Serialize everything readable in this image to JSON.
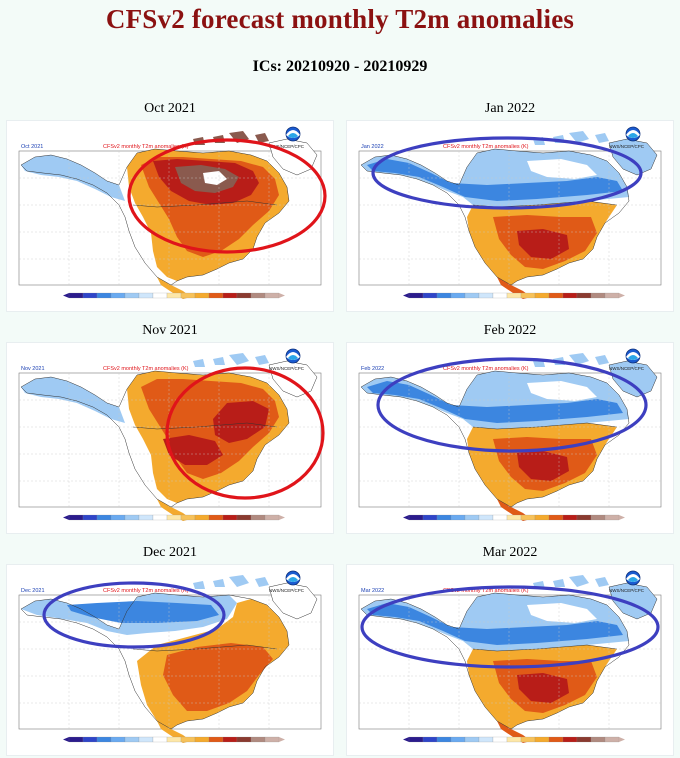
{
  "header": {
    "title": "CFSv2 forecast monthly T2m anomalies",
    "subtitle": "ICs: 20210920 - 20210929"
  },
  "map_header": {
    "title": "CFSv2 monthly T2m anomalies (K)",
    "credit": "NWS/NCEP/CPC",
    "logo_icon": "noaa-logo-icon"
  },
  "colors": {
    "cold_strong": "#3c86e0",
    "cold_light": "#9fcaf3",
    "warm_light": "#f4aa2e",
    "warm_mid": "#e05a17",
    "warm_strong": "#b81d18",
    "warm_extreme": "#8a5a4e",
    "red_circle": "#e0141a",
    "blue_circle": "#3d3fc0"
  },
  "colorbar_colors": [
    "#2b1b8c",
    "#2f45c8",
    "#3c86e0",
    "#6aaaf0",
    "#9fcaf3",
    "#cfe6fb",
    "#ffffff",
    "#fde7a8",
    "#f7c25a",
    "#f4aa2e",
    "#e05a17",
    "#b81d18",
    "#8a3a30",
    "#b08a80",
    "#ceb0a8"
  ],
  "panels": [
    {
      "label": "Oct 2021",
      "map_label": "Oct 2021",
      "pattern": "warm_east",
      "circle": "red"
    },
    {
      "label": "Jan 2022",
      "map_label": "Jan 2022",
      "pattern": "cold_north",
      "circle": "blue"
    },
    {
      "label": "Nov 2021",
      "map_label": "Nov 2021",
      "pattern": "warm_east",
      "circle": "red"
    },
    {
      "label": "Feb 2022",
      "map_label": "Feb 2022",
      "pattern": "cold_north",
      "circle": "blue"
    },
    {
      "label": "Dec 2021",
      "map_label": "Dec 2021",
      "pattern": "cold_west",
      "circle": "blue"
    },
    {
      "label": "Mar 2022",
      "map_label": "Mar 2022",
      "pattern": "cold_north",
      "circle": "blue"
    }
  ]
}
